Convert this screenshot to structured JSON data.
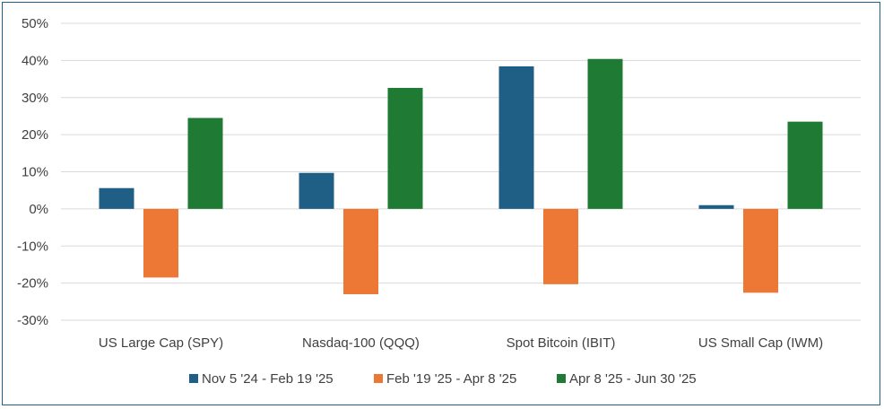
{
  "chart_data": {
    "type": "bar",
    "title": "",
    "xlabel": "",
    "ylabel": "",
    "ylim": [
      -0.3,
      0.5
    ],
    "yticks": [
      -0.3,
      -0.2,
      -0.1,
      0.0,
      0.1,
      0.2,
      0.3,
      0.4,
      0.5
    ],
    "ytick_labels": [
      "-30%",
      "-20%",
      "-10%",
      "0%",
      "10%",
      "20%",
      "30%",
      "40%",
      "50%"
    ],
    "grid": "horizontal",
    "legend_position": "bottom",
    "categories": [
      "US Large Cap (SPY)",
      "Nasdaq-100 (QQQ)",
      "Spot Bitcoin (IBIT)",
      "US Small Cap (IWM)"
    ],
    "series": [
      {
        "name": "Nov 5 '24 - Feb 19 '25",
        "color": "#1f5f86",
        "values": [
          0.056,
          0.097,
          0.384,
          0.01
        ]
      },
      {
        "name": "Feb '19 '25 - Apr 8 '25",
        "color": "#ed7734",
        "values": [
          -0.185,
          -0.23,
          -0.203,
          -0.226
        ]
      },
      {
        "name": "Apr 8 '25 - Jun 30 '25",
        "color": "#1f7a33",
        "values": [
          0.245,
          0.326,
          0.404,
          0.235
        ]
      }
    ]
  }
}
